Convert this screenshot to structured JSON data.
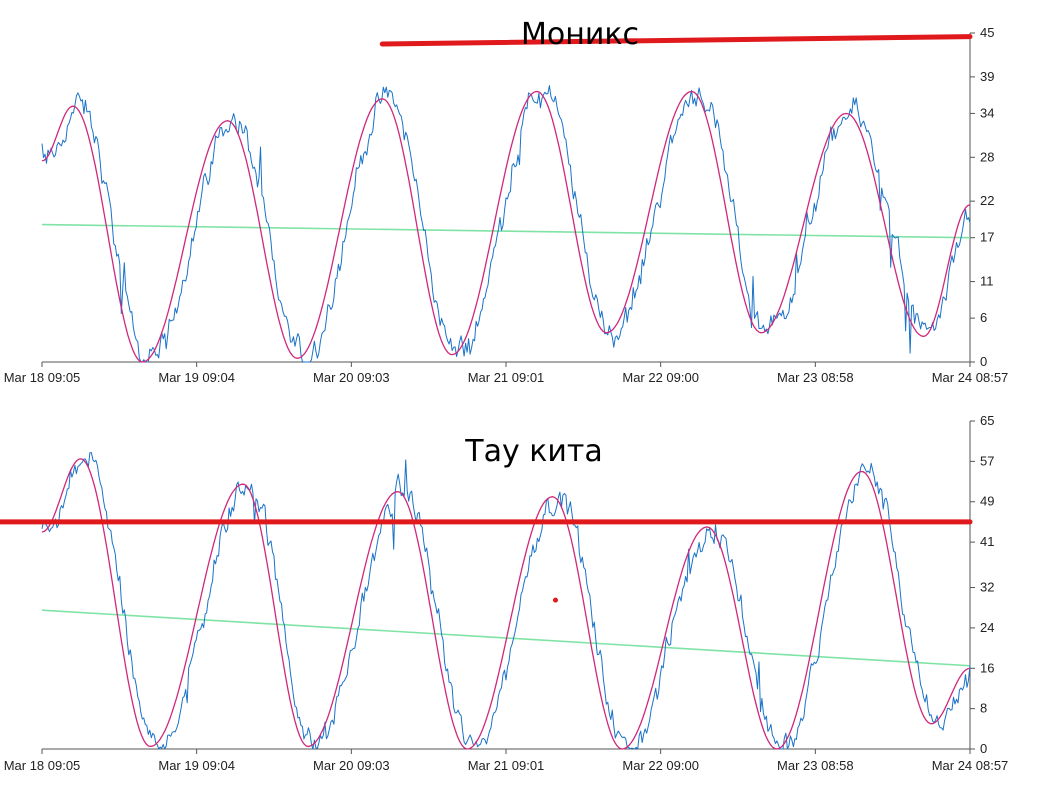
{
  "colors": {
    "raw": "#1a73c8",
    "smooth": "#d0287a",
    "trend": "#7fe3a5",
    "marker": "#e0191c",
    "axis": "#555555"
  },
  "chart_data": [
    {
      "type": "line",
      "title": "Моникс",
      "ylim": [
        0,
        45
      ],
      "yticks": [
        0,
        6,
        11,
        17,
        22,
        28,
        34,
        39,
        45
      ],
      "yaxis_position": "right",
      "xlabels": [
        "Mar 18 09:05",
        "Mar 19 09:04",
        "Mar 20 09:03",
        "Mar 21 09:01",
        "Mar 22 09:00",
        "Mar 23 08:58",
        "Mar 24 08:57"
      ],
      "x_range_days": [
        0,
        6
      ],
      "grid": false,
      "oscillation": {
        "peaks": [
          [
            0.2,
            35
          ],
          [
            1.2,
            33
          ],
          [
            2.2,
            36
          ],
          [
            3.2,
            37
          ],
          [
            4.2,
            37
          ],
          [
            5.2,
            34
          ]
        ],
        "troughs": [
          [
            0.65,
            0
          ],
          [
            1.65,
            0.5
          ],
          [
            2.65,
            1
          ],
          [
            3.65,
            4
          ],
          [
            4.65,
            4
          ],
          [
            5.7,
            3.5
          ]
        ],
        "start": [
          0,
          27.5
        ],
        "end": [
          6,
          21.5
        ]
      },
      "trend": [
        [
          0,
          18.8
        ],
        [
          6,
          17.0
        ]
      ],
      "annotation_line": [
        [
          2.2,
          43.5
        ],
        [
          6,
          44.5
        ]
      ]
    },
    {
      "type": "line",
      "title": "Тау кита",
      "ylim": [
        0,
        65
      ],
      "yticks": [
        0,
        8,
        16,
        24,
        32,
        41,
        49,
        57,
        65
      ],
      "yaxis_position": "right",
      "xlabels": [
        "Mar 18 09:05",
        "Mar 19 09:04",
        "Mar 20 09:03",
        "Mar 21 09:01",
        "Mar 22 09:00",
        "Mar 23 08:58",
        "Mar 24 08:57"
      ],
      "x_range_days": [
        0,
        6
      ],
      "grid": false,
      "oscillation": {
        "peaks": [
          [
            0.25,
            57.5
          ],
          [
            1.3,
            52.5
          ],
          [
            2.3,
            51
          ],
          [
            3.3,
            50
          ],
          [
            4.3,
            44
          ],
          [
            5.3,
            55
          ]
        ],
        "troughs": [
          [
            0.7,
            0.5
          ],
          [
            1.72,
            0.5
          ],
          [
            2.75,
            0
          ],
          [
            3.75,
            0
          ],
          [
            4.75,
            0
          ],
          [
            5.75,
            5
          ]
        ],
        "start": [
          0,
          43
        ],
        "end": [
          6,
          16
        ]
      },
      "trend": [
        [
          0,
          27.5
        ],
        [
          6,
          16.5
        ]
      ],
      "annotation_line": [
        [
          -0.27,
          45
        ],
        [
          6,
          45
        ]
      ],
      "annotation_dot": [
        3.32,
        29.5
      ]
    }
  ]
}
